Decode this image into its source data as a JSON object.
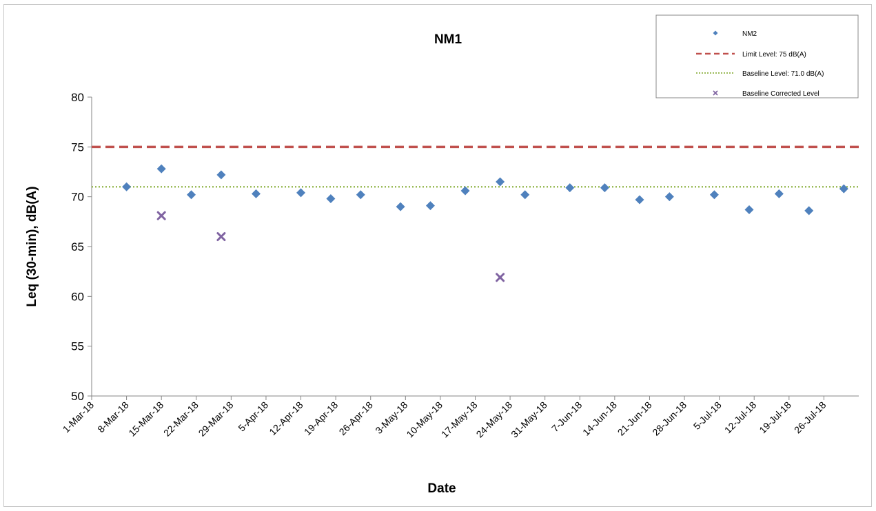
{
  "chart_data": {
    "type": "scatter",
    "title": "NM1",
    "xlabel": "Date",
    "ylabel": "Leq (30-min), dB(A)",
    "ylim": [
      50,
      80
    ],
    "yticks": [
      50,
      55,
      60,
      65,
      70,
      75,
      80
    ],
    "xlim": [
      "2018-03-01",
      "2018-08-02"
    ],
    "xtick_labels": [
      "1-Mar-18",
      "8-Mar-18",
      "15-Mar-18",
      "22-Mar-18",
      "29-Mar-18",
      "5-Apr-18",
      "12-Apr-18",
      "19-Apr-18",
      "26-Apr-18",
      "3-May-18",
      "10-May-18",
      "17-May-18",
      "24-May-18",
      "31-May-18",
      "7-Jun-18",
      "14-Jun-18",
      "21-Jun-18",
      "28-Jun-18",
      "5-Jul-18",
      "12-Jul-18",
      "19-Jul-18",
      "26-Jul-18"
    ],
    "xtick_dates": [
      "2018-03-01",
      "2018-03-08",
      "2018-03-15",
      "2018-03-22",
      "2018-03-29",
      "2018-04-05",
      "2018-04-12",
      "2018-04-19",
      "2018-04-26",
      "2018-05-03",
      "2018-05-10",
      "2018-05-17",
      "2018-05-24",
      "2018-05-31",
      "2018-06-07",
      "2018-06-14",
      "2018-06-21",
      "2018-06-28",
      "2018-07-05",
      "2018-07-12",
      "2018-07-19",
      "2018-07-26"
    ],
    "grid": false,
    "legend_position": "top-right",
    "series": [
      {
        "name": "NM2",
        "marker": "diamond",
        "color": "#4f81bd",
        "x": [
          "2018-03-08",
          "2018-03-15",
          "2018-03-21",
          "2018-03-27",
          "2018-04-03",
          "2018-04-12",
          "2018-04-18",
          "2018-04-24",
          "2018-05-02",
          "2018-05-08",
          "2018-05-15",
          "2018-05-22",
          "2018-05-27",
          "2018-06-05",
          "2018-06-12",
          "2018-06-19",
          "2018-06-25",
          "2018-07-04",
          "2018-07-11",
          "2018-07-17",
          "2018-07-23",
          "2018-07-30"
        ],
        "y": [
          71.0,
          72.8,
          70.2,
          72.2,
          70.3,
          70.4,
          69.8,
          70.2,
          69.0,
          69.1,
          70.6,
          71.5,
          70.2,
          70.9,
          70.9,
          69.7,
          70.0,
          70.2,
          68.7,
          70.3,
          68.6,
          70.8
        ]
      },
      {
        "name": "Limit Level: 75 dB(A)",
        "type": "line",
        "style": "dashed",
        "color": "#c0504d",
        "y": 75
      },
      {
        "name": "Baseline Level: 71.0 dB(A)",
        "type": "line",
        "style": "dotted",
        "color": "#9bbb59",
        "y": 71.0
      },
      {
        "name": "Baseline Corrected Level",
        "marker": "x",
        "color": "#8064a2",
        "x": [
          "2018-03-15",
          "2018-03-27",
          "2018-05-22"
        ],
        "y": [
          68.1,
          66.0,
          61.9
        ]
      }
    ]
  }
}
